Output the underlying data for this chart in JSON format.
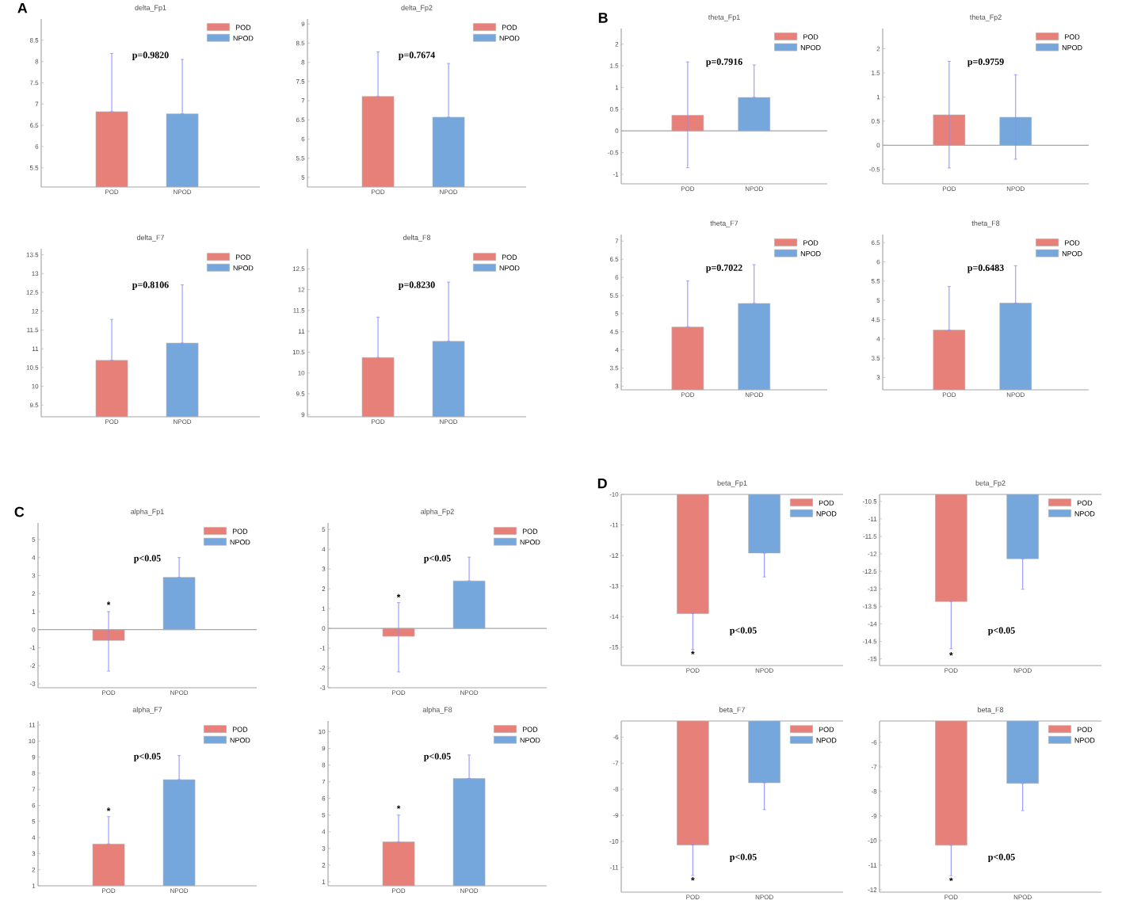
{
  "chart_data": [
    {
      "type": "bar",
      "title": "delta_Fp1",
      "categories": [
        "POD",
        "NPOD"
      ],
      "series": [
        {
          "name": "POD",
          "color": "#e8807a",
          "values": [
            6.82,
            null
          ],
          "errors": [
            [
              6.82,
              8.19
            ],
            null
          ]
        },
        {
          "name": "NPOD",
          "color": "#75a7dc",
          "values": [
            null,
            6.77
          ],
          "errors": [
            null,
            [
              6.77,
              8.05
            ]
          ]
        }
      ],
      "ylim": [
        5.05,
        9.0
      ],
      "yticks": [
        5.5,
        6,
        6.5,
        7,
        7.5,
        8,
        8.5
      ],
      "legend": "top right",
      "annotations": [
        "A",
        "p=0.9820"
      ]
    },
    {
      "type": "bar",
      "title": "delta_Fp2",
      "categories": [
        "POD",
        "NPOD"
      ],
      "series": [
        {
          "name": "POD",
          "color": "#e8807a",
          "values": [
            7.11,
            null
          ],
          "errors": [
            [
              7.11,
              8.27
            ],
            null
          ]
        },
        {
          "name": "NPOD",
          "color": "#75a7dc",
          "values": [
            null,
            6.57
          ],
          "errors": [
            null,
            [
              6.57,
              7.97
            ]
          ]
        }
      ],
      "ylim": [
        4.75,
        9.13
      ],
      "yticks": [
        5,
        5.5,
        6,
        6.5,
        7,
        7.5,
        8,
        8.5,
        9
      ],
      "legend": "top right",
      "annotations": [
        "p=0.7674"
      ]
    },
    {
      "type": "bar",
      "title": "delta_F7",
      "categories": [
        "POD",
        "NPOD"
      ],
      "series": [
        {
          "name": "POD",
          "color": "#e8807a",
          "values": [
            10.69,
            null
          ],
          "errors": [
            [
              10.69,
              11.78
            ],
            null
          ]
        },
        {
          "name": "NPOD",
          "color": "#75a7dc",
          "values": [
            null,
            11.15
          ],
          "errors": [
            null,
            [
              11.15,
              12.7
            ]
          ]
        }
      ],
      "ylim": [
        9.19,
        13.66
      ],
      "yticks": [
        9.5,
        10,
        10.5,
        11,
        11.5,
        12,
        12.5,
        13,
        13.5
      ],
      "legend": "top right",
      "annotations": [
        "p=0.8106"
      ]
    },
    {
      "type": "bar",
      "title": "delta_F8",
      "categories": [
        "POD",
        "NPOD"
      ],
      "series": [
        {
          "name": "POD",
          "color": "#e8807a",
          "values": [
            10.37,
            null
          ],
          "errors": [
            [
              10.37,
              11.34
            ],
            null
          ]
        },
        {
          "name": "NPOD",
          "color": "#75a7dc",
          "values": [
            null,
            10.76
          ],
          "errors": [
            null,
            [
              10.76,
              12.18
            ]
          ]
        }
      ],
      "ylim": [
        8.95,
        12.98
      ],
      "yticks": [
        9,
        9.5,
        10,
        10.5,
        11,
        11.5,
        12,
        12.5
      ],
      "legend": "top right",
      "annotations": [
        "p=0.8230"
      ]
    },
    {
      "type": "bar",
      "title": "theta_Fp1",
      "categories": [
        "POD",
        "NPOD"
      ],
      "series": [
        {
          "name": "POD",
          "color": "#e8807a",
          "values": [
            0.36,
            null
          ],
          "errors": [
            [
              -0.85,
              1.59
            ],
            null
          ]
        },
        {
          "name": "NPOD",
          "color": "#75a7dc",
          "values": [
            null,
            0.77
          ],
          "errors": [
            null,
            [
              0.77,
              1.52
            ]
          ]
        }
      ],
      "ylim": [
        -1.22,
        2.36
      ],
      "yticks": [
        -1,
        -0.5,
        0,
        0.5,
        1,
        1.5,
        2
      ],
      "legend": "top right",
      "annotations": [
        "B",
        "p=0.7916"
      ]
    },
    {
      "type": "bar",
      "title": "theta_Fp2",
      "categories": [
        "POD",
        "NPOD"
      ],
      "series": [
        {
          "name": "POD",
          "color": "#e8807a",
          "values": [
            0.63,
            null
          ],
          "errors": [
            [
              -0.47,
              1.74
            ],
            null
          ]
        },
        {
          "name": "NPOD",
          "color": "#75a7dc",
          "values": [
            null,
            0.58
          ],
          "errors": [
            null,
            [
              -0.29,
              1.46
            ]
          ]
        }
      ],
      "ylim": [
        -0.8,
        2.42
      ],
      "yticks": [
        -0.5,
        0,
        0.5,
        1,
        1.5,
        2
      ],
      "legend": "top right",
      "annotations": [
        "p=0.9759"
      ]
    },
    {
      "type": "bar",
      "title": "theta_F7",
      "categories": [
        "POD",
        "NPOD"
      ],
      "series": [
        {
          "name": "POD",
          "color": "#e8807a",
          "values": [
            4.63,
            null
          ],
          "errors": [
            [
              4.63,
              5.9
            ],
            null
          ]
        },
        {
          "name": "NPOD",
          "color": "#75a7dc",
          "values": [
            null,
            5.28
          ],
          "errors": [
            null,
            [
              5.28,
              6.35
            ]
          ]
        }
      ],
      "ylim": [
        2.9,
        7.18
      ],
      "yticks": [
        3,
        3.5,
        4,
        4.5,
        5,
        5.5,
        6,
        6.5,
        7
      ],
      "legend": "top right",
      "annotations": [
        "p=0.7022"
      ]
    },
    {
      "type": "bar",
      "title": "theta_F8",
      "categories": [
        "POD",
        "NPOD"
      ],
      "series": [
        {
          "name": "POD",
          "color": "#e8807a",
          "values": [
            4.23,
            null
          ],
          "errors": [
            [
              4.23,
              5.36
            ],
            null
          ]
        },
        {
          "name": "NPOD",
          "color": "#75a7dc",
          "values": [
            null,
            4.93
          ],
          "errors": [
            null,
            [
              4.93,
              5.9
            ]
          ]
        }
      ],
      "ylim": [
        2.68,
        6.71
      ],
      "yticks": [
        3,
        3.5,
        4,
        4.5,
        5,
        5.5,
        6,
        6.5
      ],
      "legend": "top right",
      "annotations": [
        "p=0.6483"
      ]
    },
    {
      "type": "bar",
      "title": "alpha_Fp1",
      "categories": [
        "POD",
        "NPOD"
      ],
      "series": [
        {
          "name": "POD",
          "color": "#e8807a",
          "values": [
            -0.6,
            null
          ],
          "errors": [
            [
              -2.3,
              1.0
            ],
            null
          ]
        },
        {
          "name": "NPOD",
          "color": "#75a7dc",
          "values": [
            null,
            2.9
          ],
          "errors": [
            null,
            [
              2.9,
              4.0
            ]
          ]
        }
      ],
      "ylim": [
        -3.22,
        5.92
      ],
      "yticks": [
        -3,
        -2,
        -1,
        0,
        1,
        2,
        3,
        4,
        5
      ],
      "legend": "top right",
      "annotations": [
        "C",
        "p<0.05",
        {
          "text": "*",
          "x": "POD",
          "y": 1.38
        }
      ]
    },
    {
      "type": "bar",
      "title": "alpha_Fp2",
      "categories": [
        "POD",
        "NPOD"
      ],
      "series": [
        {
          "name": "POD",
          "color": "#e8807a",
          "values": [
            -0.4,
            null
          ],
          "errors": [
            [
              -2.2,
              1.3
            ],
            null
          ]
        },
        {
          "name": "NPOD",
          "color": "#75a7dc",
          "values": [
            null,
            2.4
          ],
          "errors": [
            null,
            [
              2.4,
              3.6
            ]
          ]
        }
      ],
      "ylim": [
        -3.0,
        5.33
      ],
      "yticks": [
        -3,
        -2,
        -1,
        0,
        1,
        2,
        3,
        4,
        5
      ],
      "legend": "top right",
      "annotations": [
        "p<0.05",
        {
          "text": "*",
          "x": "POD",
          "y": 1.57
        }
      ]
    },
    {
      "type": "bar",
      "title": "alpha_F7",
      "categories": [
        "POD",
        "NPOD"
      ],
      "series": [
        {
          "name": "POD",
          "color": "#e8807a",
          "values": [
            3.6,
            null
          ],
          "errors": [
            [
              3.6,
              5.3
            ],
            null
          ]
        },
        {
          "name": "NPOD",
          "color": "#75a7dc",
          "values": [
            null,
            7.6
          ],
          "errors": [
            null,
            [
              7.6,
              9.1
            ]
          ]
        }
      ],
      "ylim": [
        1.0,
        11.25
      ],
      "yticks": [
        1,
        2,
        3,
        4,
        5,
        6,
        7,
        8,
        9,
        10,
        11
      ],
      "legend": "top right",
      "annotations": [
        "p<0.05",
        {
          "text": "*",
          "x": "POD",
          "y": 5.66
        }
      ]
    },
    {
      "type": "bar",
      "title": "alpha_F8",
      "categories": [
        "POD",
        "NPOD"
      ],
      "series": [
        {
          "name": "POD",
          "color": "#e8807a",
          "values": [
            3.4,
            null
          ],
          "errors": [
            [
              3.4,
              5.0
            ],
            null
          ]
        },
        {
          "name": "NPOD",
          "color": "#75a7dc",
          "values": [
            null,
            7.2
          ],
          "errors": [
            null,
            [
              7.2,
              8.6
            ]
          ]
        }
      ],
      "ylim": [
        0.76,
        10.64
      ],
      "yticks": [
        1,
        2,
        3,
        4,
        5,
        6,
        7,
        8,
        9,
        10
      ],
      "legend": "top right",
      "annotations": [
        "p<0.05",
        {
          "text": "*",
          "x": "POD",
          "y": 5.39
        }
      ]
    },
    {
      "type": "bar",
      "title": "beta_Fp1",
      "categories": [
        "POD",
        "NPOD"
      ],
      "series": [
        {
          "name": "POD",
          "color": "#e8807a",
          "values": [
            -13.9,
            null
          ],
          "errors": [
            [
              -15.07,
              -13.9
            ],
            null
          ]
        },
        {
          "name": "NPOD",
          "color": "#75a7dc",
          "values": [
            null,
            -11.92
          ],
          "errors": [
            null,
            [
              -12.7,
              -11.92
            ]
          ]
        }
      ],
      "ylim": [
        -15.6,
        -10
      ],
      "yticks": [
        -15,
        -14,
        -13,
        -12,
        -11,
        -10
      ],
      "legend": "top right",
      "annotations": [
        "D",
        "p<0.05",
        {
          "text": "*",
          "x": "POD",
          "y": -15.23
        }
      ]
    },
    {
      "type": "bar",
      "title": "beta_Fp2",
      "categories": [
        "POD",
        "NPOD"
      ],
      "series": [
        {
          "name": "POD",
          "color": "#e8807a",
          "values": [
            -13.36,
            null
          ],
          "errors": [
            [
              -14.71,
              -13.36
            ],
            null
          ]
        },
        {
          "name": "NPOD",
          "color": "#75a7dc",
          "values": [
            null,
            -12.14
          ],
          "errors": [
            null,
            [
              -13.01,
              -12.14
            ]
          ]
        }
      ],
      "ylim": [
        -15.19,
        -10.3
      ],
      "yticks": [
        -15,
        -14.5,
        -14,
        -13.5,
        -13,
        -12.5,
        -12,
        -11.5,
        -11,
        -10.5
      ],
      "legend": "top right",
      "annotations": [
        "p<0.05",
        {
          "text": "*",
          "x": "POD",
          "y": -14.9
        }
      ]
    },
    {
      "type": "bar",
      "title": "beta_F7",
      "categories": [
        "POD",
        "NPOD"
      ],
      "series": [
        {
          "name": "POD",
          "color": "#e8807a",
          "values": [
            -10.14,
            null
          ],
          "errors": [
            [
              -11.31,
              -10.14
            ],
            null
          ]
        },
        {
          "name": "NPOD",
          "color": "#75a7dc",
          "values": [
            null,
            -7.75
          ],
          "errors": [
            null,
            [
              -8.78,
              -7.75
            ]
          ]
        }
      ],
      "ylim": [
        -11.95,
        -5.38
      ],
      "yticks": [
        -11,
        -10,
        -9,
        -8,
        -7,
        -6
      ],
      "legend": "top right",
      "annotations": [
        "p<0.05",
        {
          "text": "*",
          "x": "POD",
          "y": -11.5
        }
      ]
    },
    {
      "type": "bar",
      "title": "beta_F8",
      "categories": [
        "POD",
        "NPOD"
      ],
      "series": [
        {
          "name": "POD",
          "color": "#e8807a",
          "values": [
            -10.19,
            null
          ],
          "errors": [
            [
              -11.43,
              -10.19
            ],
            null
          ]
        },
        {
          "name": "NPOD",
          "color": "#75a7dc",
          "values": [
            null,
            -7.67
          ],
          "errors": [
            null,
            [
              -8.78,
              -7.67
            ]
          ]
        }
      ],
      "ylim": [
        -12.1,
        -5.13
      ],
      "yticks": [
        -12,
        -11,
        -10,
        -9,
        -8,
        -7,
        -6
      ],
      "legend": "top right",
      "annotations": [
        "p<0.05",
        {
          "text": "*",
          "x": "POD",
          "y": -11.64
        }
      ]
    }
  ]
}
